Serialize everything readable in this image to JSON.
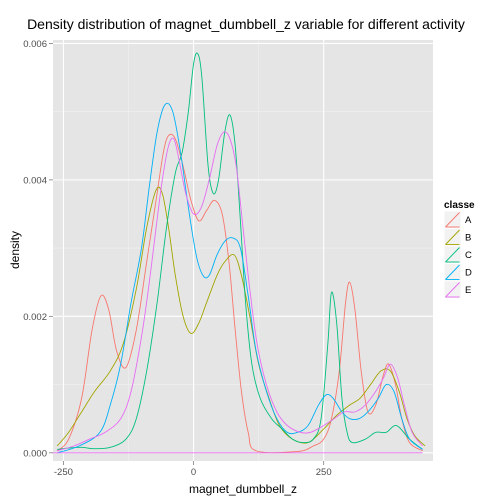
{
  "chart_data": {
    "type": "line",
    "title": "Density distribution of magnet_dumbbell_z variable for different activity",
    "xlabel": "magnet_dumbbell_z",
    "ylabel": "density",
    "xlim": [
      -270,
      460
    ],
    "ylim": [
      -0.00012,
      0.00605
    ],
    "x_ticks": [
      -250,
      0,
      250
    ],
    "x_tick_labels": [
      "-250",
      "0",
      "250"
    ],
    "y_ticks": [
      0,
      0.002,
      0.004,
      0.006
    ],
    "y_tick_labels": [
      "0.000",
      "0.002",
      "0.004",
      "0.006"
    ],
    "grid": true,
    "legend_title": "classe",
    "legend_position": "right",
    "series": [
      {
        "name": "A",
        "color": "#F8766D",
        "points": [
          [
            -262,
            3e-05
          ],
          [
            -240,
            0.0002
          ],
          [
            -215,
            0.0008
          ],
          [
            -195,
            0.0018
          ],
          [
            -178,
            0.0023
          ],
          [
            -163,
            0.0021
          ],
          [
            -148,
            0.0015
          ],
          [
            -130,
            0.00125
          ],
          [
            -110,
            0.0018
          ],
          [
            -90,
            0.0028
          ],
          [
            -72,
            0.0037
          ],
          [
            -58,
            0.0044
          ],
          [
            -48,
            0.00465
          ],
          [
            -35,
            0.0046
          ],
          [
            -20,
            0.0042
          ],
          [
            -5,
            0.0037
          ],
          [
            10,
            0.0034
          ],
          [
            25,
            0.00355
          ],
          [
            40,
            0.0037
          ],
          [
            55,
            0.0035
          ],
          [
            68,
            0.0028
          ],
          [
            80,
            0.0018
          ],
          [
            92,
            0.0009
          ],
          [
            105,
            0.0003
          ],
          [
            120,
            3e-05
          ],
          [
            200,
            2e-05
          ],
          [
            230,
            0.0001
          ],
          [
            250,
            0.0002
          ],
          [
            265,
            0.0005
          ],
          [
            280,
            0.0012
          ],
          [
            292,
            0.0022
          ],
          [
            300,
            0.0025
          ],
          [
            310,
            0.0021
          ],
          [
            322,
            0.0012
          ],
          [
            335,
            0.0006
          ],
          [
            350,
            0.0007
          ],
          [
            365,
            0.00115
          ],
          [
            375,
            0.0013
          ],
          [
            388,
            0.001
          ],
          [
            400,
            0.0005
          ],
          [
            415,
            0.00015
          ],
          [
            440,
            3e-05
          ]
        ]
      },
      {
        "name": "B",
        "color": "#A3A500",
        "points": [
          [
            -262,
            0.0001
          ],
          [
            -240,
            0.0003
          ],
          [
            -215,
            0.0006
          ],
          [
            -190,
            0.0009
          ],
          [
            -160,
            0.0012
          ],
          [
            -135,
            0.0016
          ],
          [
            -110,
            0.0024
          ],
          [
            -90,
            0.0033
          ],
          [
            -72,
            0.00385
          ],
          [
            -60,
            0.0038
          ],
          [
            -48,
            0.0033
          ],
          [
            -35,
            0.0026
          ],
          [
            -20,
            0.002
          ],
          [
            -5,
            0.00175
          ],
          [
            10,
            0.0019
          ],
          [
            25,
            0.0022
          ],
          [
            45,
            0.0026
          ],
          [
            60,
            0.0028
          ],
          [
            78,
            0.0029
          ],
          [
            92,
            0.0026
          ],
          [
            108,
            0.002
          ],
          [
            125,
            0.0013
          ],
          [
            145,
            0.0008
          ],
          [
            165,
            0.0004
          ],
          [
            190,
            0.0002
          ],
          [
            220,
            0.00015
          ],
          [
            250,
            0.00035
          ],
          [
            275,
            0.00055
          ],
          [
            300,
            0.0007
          ],
          [
            320,
            0.0008
          ],
          [
            340,
            0.001
          ],
          [
            360,
            0.0012
          ],
          [
            378,
            0.0012
          ],
          [
            395,
            0.0009
          ],
          [
            410,
            0.0005
          ],
          [
            425,
            0.00025
          ],
          [
            445,
            0.0001
          ]
        ]
      },
      {
        "name": "C",
        "color": "#00BF7D",
        "points": [
          [
            -262,
            5e-05
          ],
          [
            -240,
            7e-05
          ],
          [
            -215,
            8e-05
          ],
          [
            -190,
            6e-05
          ],
          [
            -160,
            8e-05
          ],
          [
            -130,
            0.0002
          ],
          [
            -110,
            0.0005
          ],
          [
            -90,
            0.0012
          ],
          [
            -70,
            0.0022
          ],
          [
            -52,
            0.0033
          ],
          [
            -35,
            0.0041
          ],
          [
            -22,
            0.0044
          ],
          [
            -10,
            0.005
          ],
          [
            0,
            0.0057
          ],
          [
            8,
            0.00585
          ],
          [
            16,
            0.0055
          ],
          [
            28,
            0.0042
          ],
          [
            38,
            0.0038
          ],
          [
            48,
            0.004
          ],
          [
            60,
            0.0047
          ],
          [
            70,
            0.00495
          ],
          [
            80,
            0.0045
          ],
          [
            90,
            0.0034
          ],
          [
            100,
            0.0022
          ],
          [
            112,
            0.0013
          ],
          [
            128,
            0.0008
          ],
          [
            150,
            0.0005
          ],
          [
            170,
            0.00035
          ],
          [
            190,
            0.0002
          ],
          [
            210,
            0.00015
          ],
          [
            230,
            0.0002
          ],
          [
            245,
            0.0005
          ],
          [
            258,
            0.0016
          ],
          [
            265,
            0.00235
          ],
          [
            275,
            0.0019
          ],
          [
            285,
            0.0008
          ],
          [
            295,
            0.0003
          ],
          [
            305,
            0.00015
          ],
          [
            330,
            0.0002
          ],
          [
            350,
            0.0003
          ],
          [
            370,
            0.0003
          ],
          [
            390,
            0.0004
          ],
          [
            415,
            0.0002
          ],
          [
            440,
            5e-05
          ]
        ]
      },
      {
        "name": "D",
        "color": "#00B0F6",
        "points": [
          [
            -262,
            0.0
          ],
          [
            -220,
            0.0001
          ],
          [
            -180,
            0.0003
          ],
          [
            -160,
            0.0007
          ],
          [
            -140,
            0.0013
          ],
          [
            -120,
            0.0022
          ],
          [
            -100,
            0.003
          ],
          [
            -85,
            0.0039
          ],
          [
            -70,
            0.0047
          ],
          [
            -55,
            0.0051
          ],
          [
            -40,
            0.005
          ],
          [
            -25,
            0.0044
          ],
          [
            -10,
            0.0036
          ],
          [
            5,
            0.0029
          ],
          [
            18,
            0.0026
          ],
          [
            30,
            0.0026
          ],
          [
            45,
            0.0029
          ],
          [
            60,
            0.0031
          ],
          [
            75,
            0.00315
          ],
          [
            90,
            0.003
          ],
          [
            105,
            0.0023
          ],
          [
            120,
            0.0015
          ],
          [
            140,
            0.0009
          ],
          [
            160,
            0.0005
          ],
          [
            180,
            0.0003
          ],
          [
            200,
            0.0003
          ],
          [
            220,
            0.0004
          ],
          [
            240,
            0.0007
          ],
          [
            255,
            0.00085
          ],
          [
            268,
            0.0008
          ],
          [
            285,
            0.0006
          ],
          [
            300,
            0.0005
          ],
          [
            318,
            0.0005
          ],
          [
            335,
            0.0006
          ],
          [
            355,
            0.0008
          ],
          [
            370,
            0.001
          ],
          [
            385,
            0.0009
          ],
          [
            400,
            0.0005
          ],
          [
            415,
            0.0002
          ],
          [
            440,
            5e-05
          ]
        ]
      },
      {
        "name": "E",
        "color": "#E76BF3",
        "points": [
          [
            -262,
            0.0
          ],
          [
            -200,
            0.0
          ],
          [
            440,
            0.0
          ]
        ]
      },
      {
        "name": "E",
        "color": "#E76BF3",
        "points": [
          [
            -262,
            3e-05
          ],
          [
            -230,
            0.0001
          ],
          [
            -200,
            0.0002
          ],
          [
            -170,
            0.0003
          ],
          [
            -140,
            0.0005
          ],
          [
            -120,
            0.0009
          ],
          [
            -100,
            0.0017
          ],
          [
            -85,
            0.0025
          ],
          [
            -72,
            0.0033
          ],
          [
            -60,
            0.004
          ],
          [
            -48,
            0.0045
          ],
          [
            -38,
            0.0046
          ],
          [
            -28,
            0.0043
          ],
          [
            -15,
            0.0038
          ],
          [
            0,
            0.0035
          ],
          [
            15,
            0.0036
          ],
          [
            30,
            0.004
          ],
          [
            45,
            0.0045
          ],
          [
            58,
            0.0047
          ],
          [
            70,
            0.0046
          ],
          [
            82,
            0.0042
          ],
          [
            95,
            0.0033
          ],
          [
            108,
            0.0024
          ],
          [
            122,
            0.0016
          ],
          [
            140,
            0.001
          ],
          [
            160,
            0.0006
          ],
          [
            180,
            0.0004
          ],
          [
            205,
            0.0003
          ],
          [
            225,
            0.0003
          ],
          [
            250,
            0.0004
          ],
          [
            270,
            0.0005
          ],
          [
            290,
            0.0006
          ],
          [
            310,
            0.0006
          ],
          [
            330,
            0.0007
          ],
          [
            350,
            0.0009
          ],
          [
            365,
            0.0011
          ],
          [
            378,
            0.0013
          ],
          [
            392,
            0.0011
          ],
          [
            405,
            0.0007
          ],
          [
            420,
            0.0003
          ],
          [
            440,
            0.0001
          ]
        ]
      }
    ]
  }
}
